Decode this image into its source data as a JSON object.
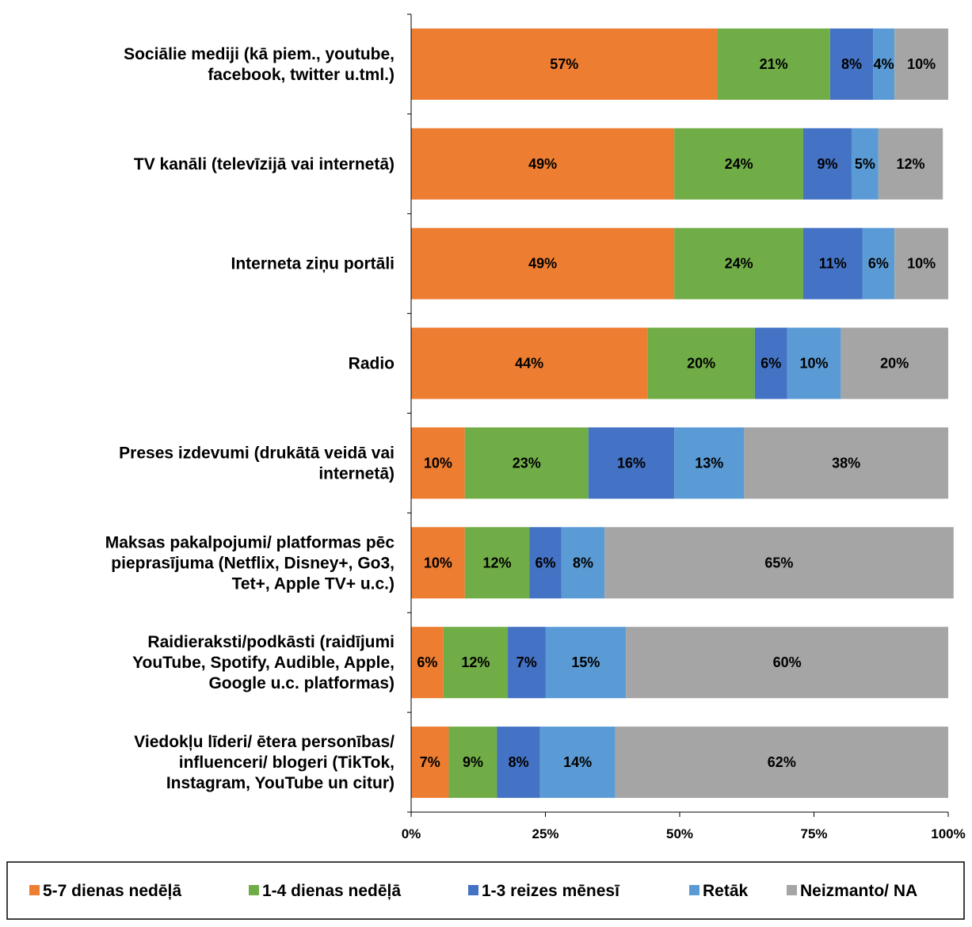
{
  "chart_data": {
    "type": "bar",
    "orientation": "horizontal",
    "stacked": true,
    "percent_stacked": true,
    "title": "",
    "xlabel": "",
    "ylabel": "",
    "xlim": [
      0,
      100
    ],
    "x_ticks": [
      "0%",
      "25%",
      "50%",
      "75%",
      "100%"
    ],
    "grid": false,
    "legend_position": "bottom",
    "categories": [
      [
        "Sociālie mediji (kā piem., youtube,",
        "facebook, twitter u.tml.)"
      ],
      [
        "TV kanāli (televīzijā vai internetā)"
      ],
      [
        "Interneta ziņu portāli"
      ],
      [
        "Radio"
      ],
      [
        "Preses izdevumi (drukātā veidā vai",
        "internetā)"
      ],
      [
        "Maksas pakalpojumi/ platformas pēc",
        "pieprasījuma (Netflix, Disney+, Go3,",
        "Tet+, Apple TV+ u.c.)"
      ],
      [
        "Raidieraksti/podkāsti (raidījumi",
        "YouTube, Spotify, Audible, Apple,",
        "Google u.c. platformas)"
      ],
      [
        "Viedokļu līderi/ ētera personības/",
        "influenceri/ blogeri (TikTok,",
        "Instagram, YouTube un citur)"
      ]
    ],
    "series": [
      {
        "name": "5-7 dienas nedēļā",
        "color": "#ED7D31",
        "values": [
          57,
          49,
          49,
          44,
          10,
          10,
          6,
          7
        ],
        "labels": [
          "57%",
          "49%",
          "49%",
          "44%",
          "10%",
          "10%",
          "6%",
          "7%"
        ]
      },
      {
        "name": "1-4 dienas nedēļā",
        "color": "#70AD47",
        "values": [
          21,
          24,
          24,
          20,
          23,
          12,
          12,
          9
        ],
        "labels": [
          "21%",
          "24%",
          "24%",
          "20%",
          "23%",
          "12%",
          "12%",
          "9%"
        ]
      },
      {
        "name": "1-3 reizes mēnesī",
        "color": "#4472C4",
        "values": [
          8,
          9,
          11,
          6,
          16,
          6,
          7,
          8
        ],
        "labels": [
          "8%",
          "9%",
          "11%",
          "6%",
          "16%",
          "6%",
          "7%",
          "8%"
        ]
      },
      {
        "name": "Retāk",
        "color": "#5B9BD5",
        "values": [
          4,
          5,
          6,
          10,
          13,
          8,
          15,
          14
        ],
        "labels": [
          "4%",
          "5%",
          "6%",
          "10%",
          "13%",
          "8%",
          "15%",
          "14%"
        ]
      },
      {
        "name": "Neizmanto/ NA",
        "color": "#A5A5A5",
        "values": [
          10,
          12,
          10,
          20,
          38,
          65,
          60,
          62
        ],
        "labels": [
          "10%",
          "12%",
          "10%",
          "20%",
          "38%",
          "65%",
          "60%",
          "62%"
        ]
      }
    ]
  }
}
